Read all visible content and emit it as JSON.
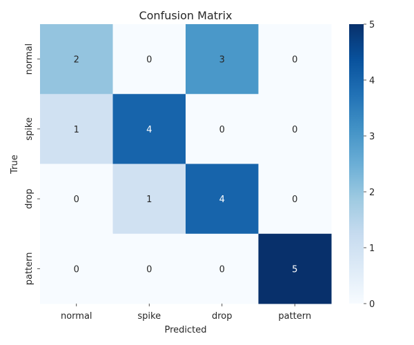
{
  "chart_data": {
    "type": "heatmap",
    "title": "Confusion Matrix",
    "xlabel": "Predicted",
    "ylabel": "True",
    "x_categories": [
      "normal",
      "spike",
      "drop",
      "pattern"
    ],
    "y_categories": [
      "normal",
      "spike",
      "drop",
      "pattern"
    ],
    "values": [
      [
        2,
        0,
        3,
        0
      ],
      [
        1,
        4,
        0,
        0
      ],
      [
        0,
        1,
        4,
        0
      ],
      [
        0,
        0,
        0,
        5
      ]
    ],
    "colorbar": {
      "range": [
        0,
        5
      ],
      "ticks": [
        "0",
        "1",
        "2",
        "3",
        "4",
        "5"
      ]
    },
    "colormap": "Blues",
    "colors": [
      "#f7fbff",
      "#deebf7",
      "#c6dbef",
      "#9ecae1",
      "#6baed6",
      "#4292c6",
      "#2171b5",
      "#08519c",
      "#08306b"
    ],
    "grid": false
  }
}
